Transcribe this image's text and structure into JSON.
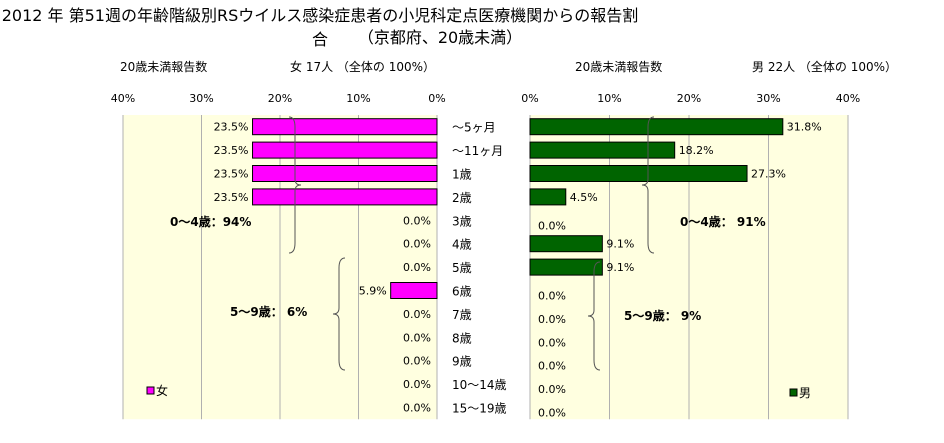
{
  "title": "2012 年 第51週の年齢階級別RSウイルス感染症患者の小児科定点医療機関からの報告割合",
  "subtitle": "（京都府、20歳未満）",
  "headers": {
    "left_count_label": "20歳未満報告数",
    "left_total": "女 17人 （全体の 100%）",
    "right_count_label": "20歳未満報告数",
    "right_total": "男 22人 （全体の 100%）"
  },
  "chart_data": [
    {
      "type": "bar",
      "orientation": "horizontal",
      "direction": "right-to-left",
      "categories": [
        "～5ヶ月",
        "～11ヶ月",
        "1歳",
        "2歳",
        "3歳",
        "4歳",
        "5歳",
        "6歳",
        "7歳",
        "8歳",
        "9歳",
        "10～14歳",
        "15～19歳"
      ],
      "series": [
        {
          "name": "女",
          "color": "#ff00ff",
          "values": [
            23.5,
            23.5,
            23.5,
            23.5,
            0.0,
            0.0,
            0.0,
            5.9,
            0.0,
            0.0,
            0.0,
            0.0,
            0.0
          ],
          "labels": [
            "23.5%",
            "23.5%",
            "23.5%",
            "23.5%",
            "0.0%",
            "0.0%",
            "0.0%",
            "5.9%",
            "0.0%",
            "0.0%",
            "0.0%",
            "0.0%",
            "0.0%"
          ]
        }
      ],
      "xlim": [
        0,
        40
      ],
      "xticks": [
        "40%",
        "30%",
        "20%",
        "10%",
        "0%"
      ],
      "grid": true,
      "legend": "bottom-left",
      "annotations": [
        "0～4歳：94%",
        "5～9歳： 6%"
      ]
    },
    {
      "type": "bar",
      "orientation": "horizontal",
      "direction": "left-to-right",
      "categories": [
        "～5ヶ月",
        "～11ヶ月",
        "1歳",
        "2歳",
        "3歳",
        "4歳",
        "5歳",
        "6歳",
        "7歳",
        "8歳",
        "9歳",
        "10～14歳",
        "15～19歳"
      ],
      "series": [
        {
          "name": "男",
          "color": "#006400",
          "values": [
            31.8,
            18.2,
            27.3,
            4.5,
            0.0,
            9.1,
            9.1,
            0.0,
            0.0,
            0.0,
            0.0,
            0.0,
            0.0
          ],
          "labels": [
            "31.8%",
            "18.2%",
            "27.3%",
            "4.5%",
            "0.0%",
            "9.1%",
            "9.1%",
            "0.0%",
            "0.0%",
            "0.0%",
            "0.0%",
            "0.0%",
            "0.0%"
          ]
        }
      ],
      "xlim": [
        0,
        40
      ],
      "xticks": [
        "0%",
        "10%",
        "20%",
        "30%",
        "40%"
      ],
      "grid": true,
      "legend": "bottom-right",
      "annotations": [
        "0～4歳： 91%",
        "5～9歳： 9%"
      ]
    }
  ]
}
